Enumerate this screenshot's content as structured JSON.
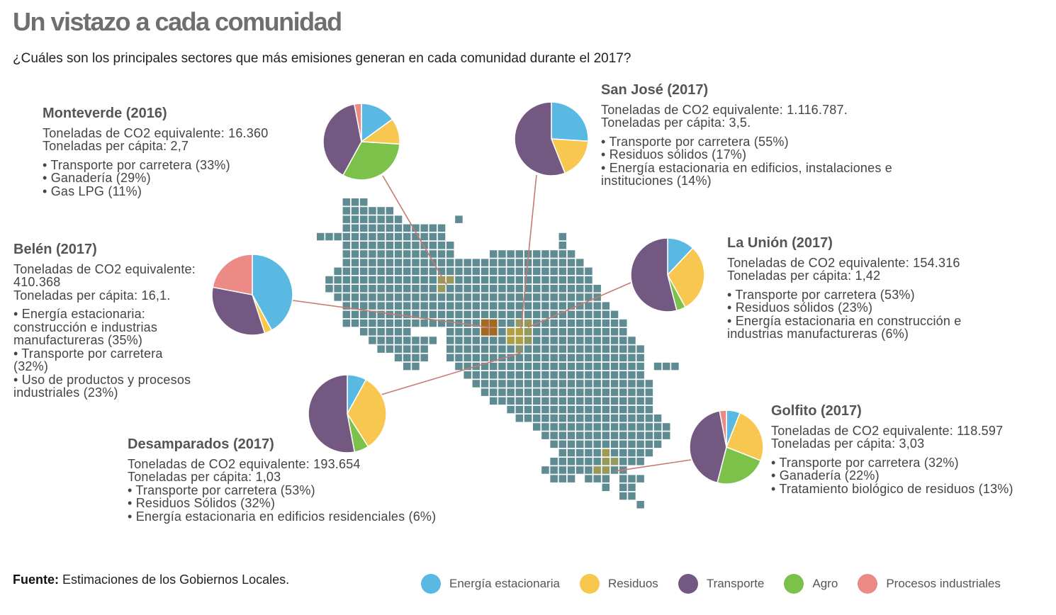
{
  "header": {
    "title": "Un vistazo a cada comunidad",
    "subtitle": "¿Cuáles son los principales sectores que más emisiones generan en cada comunidad durante el 2017?"
  },
  "footer": {
    "source_label": "Fuente:",
    "source_text": "Estimaciones de los Gobiernos Locales."
  },
  "colors": {
    "map_cell": "#5f8c93",
    "highlight": "#c9a52a",
    "connector": "#c97a72"
  },
  "chart_data": {
    "type": "pie",
    "sectors": [
      {
        "key": "energia",
        "label": "Energía estacionaria",
        "color": "#5ab9e3"
      },
      {
        "key": "residuos",
        "label": "Residuos",
        "color": "#f8c74f"
      },
      {
        "key": "transporte",
        "label": "Transporte",
        "color": "#735982"
      },
      {
        "key": "agro",
        "label": "Agro",
        "color": "#7cc14a"
      },
      {
        "key": "procesos",
        "label": "Procesos industriales",
        "color": "#ec8a85"
      }
    ],
    "communities": [
      {
        "id": "monteverde",
        "name": "Monteverde (2016)",
        "stats": [
          "Toneladas de CO2 equivalente: 16.360",
          "Toneladas per cápita: 2,7"
        ],
        "top": [
          "Transporte por carretera (33%)",
          "Ganadería (29%)",
          "Gas LPG (11%)"
        ],
        "slices": {
          "energia": 15,
          "residuos": 11,
          "agro": 32,
          "transporte": 39,
          "procesos": 3
        }
      },
      {
        "id": "sanjose",
        "name": "San José (2017)",
        "stats": [
          "Toneladas de CO2 equivalente: 1.116.787.",
          "Toneladas per cápita: 3,5."
        ],
        "top": [
          "Transporte por carretera (55%)",
          "Residuos sólidos (17%)",
          "Energía estacionaria en edificios, instalaciones e instituciones (14%)"
        ],
        "slices": {
          "energia": 26,
          "residuos": 18,
          "transporte": 56
        }
      },
      {
        "id": "belen",
        "name": "Belén (2017)",
        "stats": [
          "Toneladas de CO2 equivalente: 410.368",
          "Toneladas per cápita: 16,1."
        ],
        "top": [
          "Energía estacionaria: construcción e industrias manufactureras (35%)",
          "Transporte por carretera (32%)",
          "Uso de productos y procesos industriales (23%)"
        ],
        "slices": {
          "energia": 42,
          "residuos": 3,
          "transporte": 33,
          "procesos": 22
        }
      },
      {
        "id": "launion",
        "name": "La Unión (2017)",
        "stats": [
          "Toneladas de CO2 equivalente: 154.316",
          "Toneladas per cápita: 1,42"
        ],
        "top": [
          "Transporte por carretera (53%)",
          "Residuos sólidos (23%)",
          "Energía estacionaria en construcción e industrias manufactureras (6%)"
        ],
        "slices": {
          "energia": 12,
          "residuos": 30,
          "agro": 4,
          "transporte": 54
        }
      },
      {
        "id": "desamparados",
        "name": "Desamparados (2017)",
        "stats": [
          "Toneladas de CO2 equivalente: 193.654",
          "Toneladas per cápita: 1,03"
        ],
        "top": [
          "Transporte por carretera (53%)",
          "Residuos Sólidos (32%)",
          "Energía estacionaria en edificios residenciales (6%)"
        ],
        "slices": {
          "energia": 8,
          "residuos": 33,
          "agro": 6,
          "transporte": 53
        }
      },
      {
        "id": "golfito",
        "name": "Golfito (2017)",
        "stats": [
          "Toneladas de CO2 equivalente: 118.597",
          "Toneladas per cápita: 3,03"
        ],
        "top": [
          "Transporte por carretera (32%)",
          "Ganadería (22%)",
          "Tratamiento biológico de residuos (13%)"
        ],
        "slices": {
          "energia": 6,
          "residuos": 25,
          "agro": 23,
          "transporte": 43,
          "procesos": 3
        }
      }
    ]
  }
}
